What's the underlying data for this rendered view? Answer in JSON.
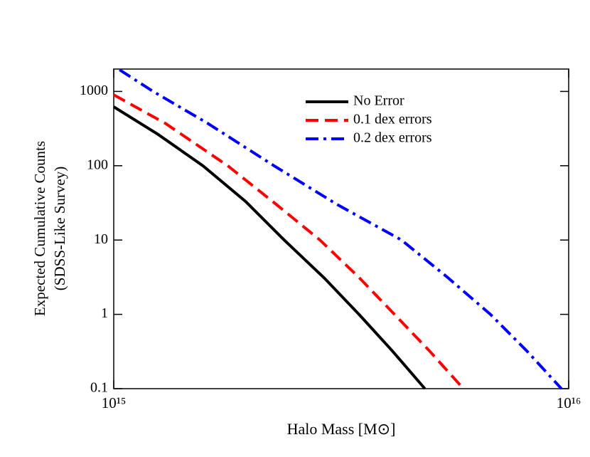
{
  "chart_data": {
    "type": "line",
    "xlabel": "Halo Mass [M⊙]",
    "ylabel": [
      "Expected Cumulative Counts",
      "(SDSS-Like Survey)"
    ],
    "xscale": "log",
    "yscale": "log",
    "xlim": [
      1000000000000000.0,
      1e+16
    ],
    "xticks": [
      {
        "value": 1000000000000000.0,
        "label": "10¹⁵"
      },
      {
        "value": 1e+16,
        "label": "10¹⁶"
      }
    ],
    "ylim": [
      0.1,
      2000
    ],
    "yticks": [
      0.1,
      1,
      10,
      100,
      1000
    ],
    "legend": "upper center",
    "series": [
      {
        "name": "No Error",
        "color": "#000000",
        "dash": "solid",
        "x": [
          1000000000000000.0,
          1250000000000000.0,
          1570000000000000.0,
          1950000000000000.0,
          2370000000000000.0,
          2900000000000000.0,
          3460000000000000.0,
          4100000000000000.0,
          4830000000000000.0
        ],
        "values": [
          620,
          265,
          100,
          33,
          10,
          3.1,
          1,
          0.32,
          0.1
        ]
      },
      {
        "name": "0.1 dex errors",
        "color": "#ff0000",
        "dash": "dashed",
        "x": [
          1000000000000000.0,
          1300000000000000.0,
          1780000000000000.0,
          2250000000000000.0,
          2840000000000000.0,
          3450000000000000.0,
          4140000000000000.0,
          4950000000000000.0,
          5870000000000000.0
        ],
        "values": [
          900,
          370,
          100,
          32,
          10,
          3.2,
          1,
          0.32,
          0.1
        ]
      },
      {
        "name": "0.2 dex errors",
        "color": "#0000ff",
        "dash": "dashdot",
        "x": [
          1030000000000000.0,
          1220000000000000.0,
          1600000000000000.0,
          2250000000000000.0,
          3100000000000000.0,
          4290000000000000.0,
          5400000000000000.0,
          6730000000000000.0,
          8100000000000000.0,
          9640000000000000.0
        ],
        "values": [
          1950,
          1000,
          380,
          100,
          30,
          10,
          3.2,
          1,
          0.32,
          0.1
        ]
      }
    ]
  }
}
